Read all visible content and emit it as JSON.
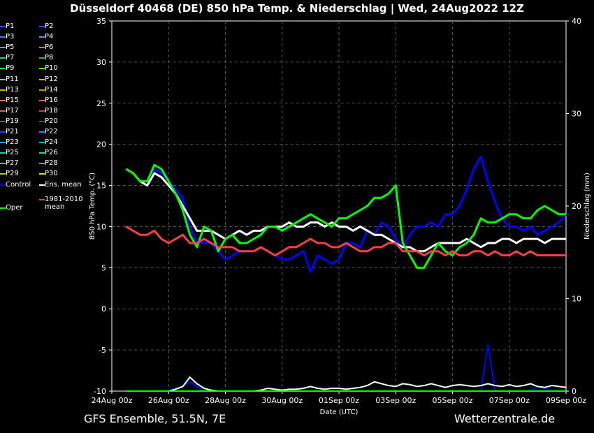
{
  "title": "Düsseldorf 40468 (DE)  850 hPa Temp. & Niederschlag | Wed, 24Aug2022 12Z",
  "footer": {
    "left": "GFS Ensemble, 51.5N, 7E",
    "right": "Wetterzentrale.de"
  },
  "chart_data": {
    "type": "line",
    "xlabel": "Date (UTC)",
    "ylabel": "850 hPa Temp. (°C)",
    "y2label": "Niederschlag (mm)",
    "ylim": [
      -10,
      35
    ],
    "y2lim": [
      0,
      40
    ],
    "yticks": [
      -10,
      -5,
      0,
      5,
      10,
      15,
      20,
      25,
      30,
      35
    ],
    "y2ticks": [
      0,
      10,
      20,
      30,
      40
    ],
    "xlim": [
      0,
      16
    ],
    "xticks": [
      {
        "x": 0,
        "label": "24Aug 00z"
      },
      {
        "x": 2,
        "label": "26Aug 00z"
      },
      {
        "x": 4,
        "label": "28Aug 00z"
      },
      {
        "x": 6,
        "label": "30Aug 00z"
      },
      {
        "x": 8,
        "label": "01Sep 00z"
      },
      {
        "x": 10,
        "label": "03Sep 00z"
      },
      {
        "x": 12,
        "label": "05Sep 00z"
      },
      {
        "x": 14,
        "label": "07Sep 00z"
      },
      {
        "x": 16,
        "label": "09Sep 00z"
      }
    ],
    "grid": true,
    "legend_position": "left",
    "x": [
      0.5,
      0.75,
      1.0,
      1.25,
      1.5,
      1.75,
      2.0,
      2.25,
      2.5,
      2.75,
      3.0,
      3.25,
      3.5,
      3.75,
      4.0,
      4.25,
      4.5,
      4.75,
      5.0,
      5.25,
      5.5,
      5.75,
      6.0,
      6.25,
      6.5,
      6.75,
      7.0,
      7.25,
      7.5,
      7.75,
      8.0,
      8.25,
      8.5,
      8.75,
      9.0,
      9.25,
      9.5,
      9.75,
      10.0,
      10.25,
      10.5,
      10.75,
      11.0,
      11.25,
      11.5,
      11.75,
      12.0,
      12.25,
      12.5,
      12.75,
      13.0,
      13.25,
      13.5,
      13.75,
      14.0,
      14.25,
      14.5,
      14.75,
      15.0,
      15.25,
      15.5,
      15.75,
      16.0
    ],
    "series": [
      {
        "name": "Control",
        "color": "#0000ff",
        "width": 3,
        "values": [
          17,
          16.5,
          15.5,
          15.5,
          17,
          16.5,
          15.5,
          14.5,
          13.5,
          10,
          8,
          8,
          8,
          7,
          6,
          6.5,
          7,
          7,
          7,
          7.5,
          7,
          6.5,
          6,
          6,
          6.5,
          7,
          4.5,
          6.5,
          6,
          5.5,
          6,
          8,
          8,
          7.5,
          9.5,
          9,
          10.5,
          10,
          8.5,
          7.5,
          9,
          10,
          10,
          10.5,
          10,
          11.5,
          11.5,
          12.5,
          14.5,
          17,
          18.5,
          15.5,
          13,
          11,
          10,
          10,
          9.5,
          10,
          9,
          9.5,
          10,
          10.5,
          11.5
        ]
      },
      {
        "name": "Ens. mean",
        "color": "#ffffff",
        "width": 3,
        "values": [
          17,
          16.5,
          15.5,
          15,
          16.5,
          16,
          15,
          14,
          12.5,
          11,
          9.5,
          9.5,
          9.5,
          9,
          8.5,
          9,
          9.5,
          9,
          9.5,
          9.5,
          10,
          10,
          10,
          10.5,
          10,
          10,
          10.5,
          10.5,
          10,
          10.5,
          10,
          10,
          9.5,
          10,
          9.5,
          9,
          9,
          8.5,
          8,
          7.5,
          7.5,
          7,
          7,
          7.5,
          8,
          8,
          8,
          8,
          8.5,
          8,
          7.5,
          8,
          8,
          8.5,
          8.5,
          8,
          8.5,
          8.5,
          8.5,
          8,
          8.5,
          8.5,
          8.5
        ]
      },
      {
        "name": "Oper",
        "color": "#00ff00",
        "width": 3,
        "values": [
          17,
          16.5,
          15.5,
          15.5,
          17.5,
          17,
          15.5,
          14,
          12,
          9,
          7.5,
          10,
          9.5,
          7,
          8.5,
          9,
          8,
          8,
          8.5,
          9,
          10,
          10,
          9.5,
          10,
          10.5,
          11,
          11.5,
          11,
          10.5,
          10,
          11,
          11,
          11.5,
          12,
          12.5,
          13.5,
          13.5,
          14,
          15,
          8,
          6.5,
          5,
          5,
          6.5,
          8,
          7,
          6.5,
          7.5,
          8,
          9,
          11,
          10.5,
          10.5,
          11,
          11.5,
          11.5,
          11,
          11,
          12,
          12.5,
          12,
          11.5,
          11.5
        ]
      },
      {
        "name": "1981-2010 mean",
        "color": "#ff4040",
        "width": 3,
        "values": [
          10,
          9.5,
          9,
          9,
          9.5,
          8.5,
          8,
          8.5,
          9,
          8,
          8,
          8.5,
          8,
          7.5,
          7.5,
          7.5,
          7,
          7,
          7,
          7.5,
          7,
          6.5,
          7,
          7.5,
          7.5,
          8,
          8.5,
          8,
          8,
          7.5,
          7.5,
          8,
          7.5,
          7,
          7,
          7.5,
          7.5,
          8,
          8,
          7,
          7,
          7,
          6.5,
          7,
          7,
          6.5,
          7,
          6.5,
          6.5,
          7,
          7,
          6.5,
          7,
          6.5,
          6.5,
          7,
          6.5,
          7,
          6.5,
          6.5,
          6.5,
          6.5,
          6.5
        ]
      }
    ],
    "precip_series": [
      {
        "name": "Control",
        "color": "#0000ff",
        "values": [
          0,
          0,
          0,
          0,
          0,
          0,
          0,
          0.3,
          0.5,
          1,
          0.5,
          0,
          0,
          0,
          0,
          0,
          0,
          0,
          0,
          0,
          0,
          0,
          0,
          0,
          0,
          0,
          0,
          0,
          0,
          0,
          0,
          0,
          0,
          0,
          0,
          0,
          0,
          0,
          0,
          0,
          0,
          0,
          0,
          0,
          0,
          0,
          0,
          0,
          0,
          0,
          0,
          5,
          0,
          0,
          0,
          0,
          0,
          0,
          0.5,
          0.3,
          0,
          0,
          0
        ]
      },
      {
        "name": "Ens. mean",
        "color": "#ffffff",
        "values": [
          0,
          0,
          0,
          0,
          0,
          0,
          0,
          0.2,
          0.5,
          1.5,
          0.8,
          0.3,
          0.1,
          0,
          0,
          0,
          0,
          0,
          0,
          0.1,
          0.3,
          0.2,
          0.1,
          0.2,
          0.2,
          0.3,
          0.5,
          0.3,
          0.2,
          0.3,
          0.3,
          0.2,
          0.3,
          0.4,
          0.6,
          1,
          0.8,
          0.6,
          0.5,
          0.8,
          0.7,
          0.5,
          0.6,
          0.8,
          0.6,
          0.4,
          0.6,
          0.7,
          0.6,
          0.5,
          0.6,
          0.8,
          0.6,
          0.5,
          0.7,
          0.5,
          0.6,
          0.8,
          0.5,
          0.4,
          0.6,
          0.5,
          0.4
        ]
      },
      {
        "name": "Oper",
        "color": "#00ff00",
        "values": [
          0,
          0,
          0,
          0,
          0,
          0,
          0,
          0,
          0,
          0,
          0,
          0,
          0,
          0,
          0,
          0,
          0,
          0,
          0,
          0,
          0,
          0,
          0,
          0,
          0,
          0,
          0,
          0,
          0,
          0,
          0,
          0,
          0,
          0,
          0,
          0,
          0,
          0,
          0,
          0,
          0,
          0,
          0,
          0,
          0,
          0,
          0,
          0,
          0,
          0,
          0,
          0,
          0,
          0,
          0,
          0,
          0,
          0,
          0,
          0,
          0,
          0,
          0
        ]
      }
    ]
  },
  "legend": [
    {
      "label": "P1",
      "color": "#3050ff"
    },
    {
      "label": "P2",
      "color": "#3050ff"
    },
    {
      "label": "P3",
      "color": "#3f7fff"
    },
    {
      "label": "P4",
      "color": "#2fa8ff"
    },
    {
      "label": "P5",
      "color": "#20c0e0"
    },
    {
      "label": "P6",
      "color": "#20c0a0"
    },
    {
      "label": "P7",
      "color": "#20d090"
    },
    {
      "label": "P8",
      "color": "#20c060"
    },
    {
      "label": "P9",
      "color": "#30e040"
    },
    {
      "label": "P10",
      "color": "#50e020"
    },
    {
      "label": "P11",
      "color": "#b0d020"
    },
    {
      "label": "P12",
      "color": "#d0c020"
    },
    {
      "label": "P13",
      "color": "#e0b020"
    },
    {
      "label": "P14",
      "color": "#e09020"
    },
    {
      "label": "P15",
      "color": "#e08050"
    },
    {
      "label": "P16",
      "color": "#d07040"
    },
    {
      "label": "P17",
      "color": "#e06040"
    },
    {
      "label": "P18",
      "color": "#e04030"
    },
    {
      "label": "P19",
      "color": "#d03030"
    },
    {
      "label": "P20",
      "color": "#c02020"
    },
    {
      "label": "P21",
      "color": "#2040ff"
    },
    {
      "label": "P22",
      "color": "#2f80ff"
    },
    {
      "label": "P23",
      "color": "#30a0ff"
    },
    {
      "label": "P24",
      "color": "#20b0d0"
    },
    {
      "label": "P25",
      "color": "#20d0b0"
    },
    {
      "label": "P26",
      "color": "#20e090"
    },
    {
      "label": "P27",
      "color": "#20e060"
    },
    {
      "label": "P28",
      "color": "#30d040"
    },
    {
      "label": "P29",
      "color": "#80e020"
    },
    {
      "label": "P30",
      "color": "#e0e020"
    },
    {
      "label": "Control",
      "color": "#0000ff"
    },
    {
      "label": "Ens. mean",
      "color": "#ffffff"
    },
    {
      "label": "Oper",
      "color": "#00ff00"
    },
    {
      "label": "1981-2010\nmean",
      "color": "#ff4040"
    }
  ]
}
